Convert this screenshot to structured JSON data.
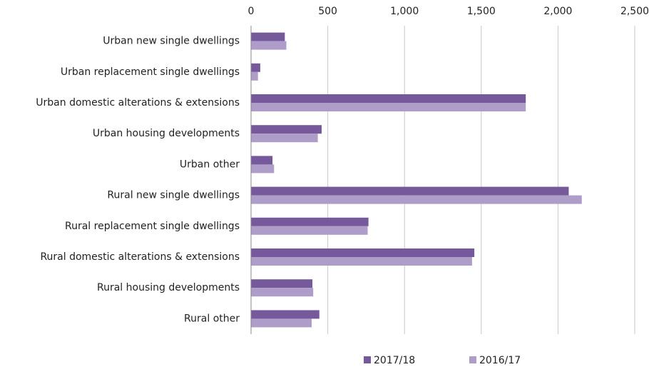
{
  "chart_data": {
    "type": "bar",
    "orientation": "horizontal",
    "categories": [
      "Urban new single dwellings",
      "Urban replacement single dwellings",
      "Urban domestic alterations & extensions",
      "Urban housing developments",
      "Urban other",
      "Rural new single dwellings",
      "Rural replacement single dwellings",
      "Rural domestic alterations & extensions",
      "Rural housing developments",
      "Rural other"
    ],
    "series": [
      {
        "name": "2017/18",
        "color": "#76599b",
        "values": [
          220,
          60,
          1790,
          460,
          140,
          2070,
          765,
          1455,
          400,
          445
        ]
      },
      {
        "name": "2016/17",
        "color": "#ae9dc9",
        "values": [
          230,
          45,
          1790,
          435,
          150,
          2155,
          760,
          1440,
          405,
          395
        ]
      }
    ],
    "xlim": [
      0,
      2500
    ],
    "xticks": [
      0,
      500,
      {
        "value": 1000,
        "label": "1,000"
      },
      {
        "value": 1500,
        "label": "1,500"
      },
      {
        "value": 2000,
        "label": "2,000"
      },
      {
        "value": 2500,
        "label": "2,500"
      }
    ],
    "grid": true,
    "legend": "bottom"
  }
}
